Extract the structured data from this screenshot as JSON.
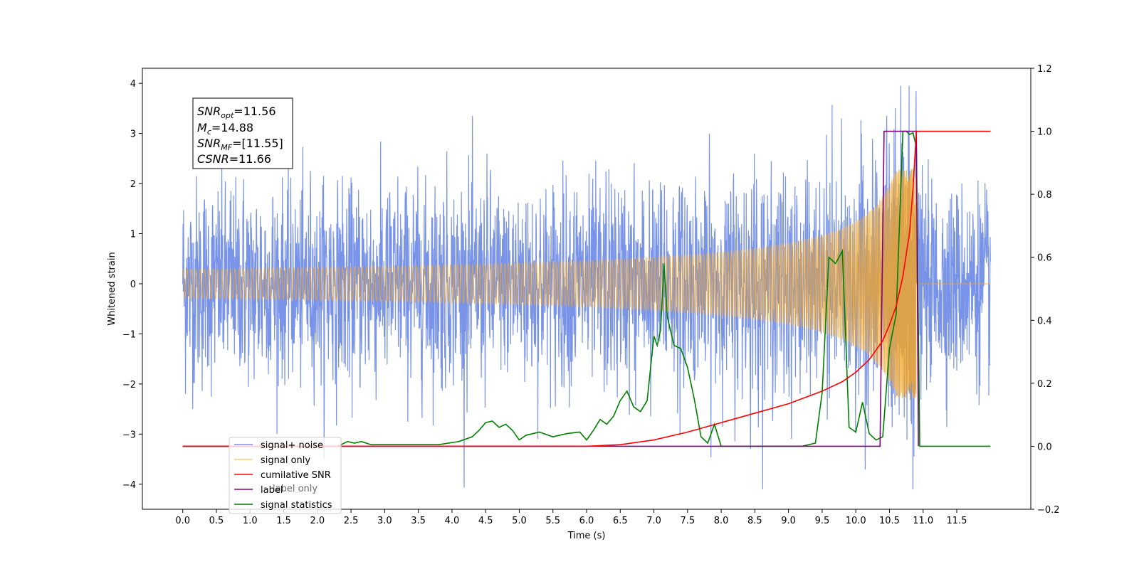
{
  "chart_data": {
    "type": "line",
    "title": "",
    "xlabel": "Time (s)",
    "ylabel": "Whitened strain",
    "y2label": "",
    "xlim": [
      -0.6,
      12.6
    ],
    "ylim": [
      -4.5,
      4.3
    ],
    "y2lim": [
      -0.2,
      1.2
    ],
    "xticks": [
      "0.0",
      "0.5",
      "1.0",
      "1.5",
      "2.0",
      "2.5",
      "3.0",
      "3.5",
      "4.0",
      "4.5",
      "5.0",
      "5.5",
      "6.0",
      "6.5",
      "7.0",
      "7.5",
      "8.0",
      "8.5",
      "9.0",
      "9.5",
      "10.0",
      "10.5",
      "11.0",
      "11.5"
    ],
    "yticks": [
      "4",
      "3",
      "2",
      "1",
      "0",
      "−1",
      "−2",
      "−3",
      "−4"
    ],
    "y2ticks": [
      "1.2",
      "1.0",
      "0.8",
      "0.6",
      "0.4",
      "0.2",
      "0.0",
      "−0.2"
    ],
    "grid": false,
    "legend_position": "lower-left",
    "annotation": {
      "snr_opt_symbol": "SNR",
      "snr_opt_sub": "opt",
      "snr_opt_value": "=11.56",
      "mc_symbol": "M",
      "mc_sub": "c",
      "mc_value": "=14.88",
      "snr_mf_symbol": "SNR",
      "snr_mf_sub": "MF",
      "snr_mf_value": "=[11.55]",
      "csnr_symbol": "CSNR",
      "csnr_value": "=11.66"
    },
    "series": [
      {
        "name": "signal+ noise",
        "color": "#7893e8",
        "axis": "left",
        "description_values": {
          "x_start": 0.0,
          "x_end": 12.0,
          "noise_std": 1.0,
          "peak_max": 3.95,
          "peak_min": -4.1
        }
      },
      {
        "name": "signal only",
        "color": "#f5a623",
        "axis": "left",
        "chirp": {
          "t_start": 0.0,
          "t_merge": 10.9,
          "t_end": 12.0,
          "amp_at_merge": 2.3
        }
      },
      {
        "name": "cumilative SNR",
        "color": "#ff0000",
        "axis": "right",
        "x": [
          0.0,
          6.0,
          6.5,
          7.0,
          7.5,
          8.0,
          8.5,
          9.0,
          9.5,
          9.8,
          10.0,
          10.2,
          10.4,
          10.5,
          10.6,
          10.7,
          10.8,
          10.85,
          10.9,
          12.0
        ],
        "y": [
          0.0,
          0.0,
          0.005,
          0.02,
          0.045,
          0.075,
          0.105,
          0.135,
          0.175,
          0.205,
          0.235,
          0.275,
          0.335,
          0.385,
          0.445,
          0.54,
          0.68,
          0.82,
          1.0,
          1.0
        ]
      },
      {
        "name": "label",
        "color": "#800080",
        "axis": "right",
        "x": [
          0.0,
          10.36,
          10.42,
          10.9,
          10.93
        ],
        "y": [
          0.0,
          0.0,
          1.0,
          1.0,
          0.0
        ]
      },
      {
        "name": "signal statistics",
        "color": "#008000",
        "axis": "right",
        "x": [
          0.0,
          2.3,
          2.45,
          2.55,
          2.65,
          2.8,
          3.2,
          3.8,
          4.1,
          4.3,
          4.4,
          4.5,
          4.6,
          4.7,
          4.8,
          4.9,
          5.0,
          5.1,
          5.3,
          5.5,
          5.7,
          5.9,
          6.0,
          6.1,
          6.2,
          6.3,
          6.4,
          6.5,
          6.6,
          6.7,
          6.8,
          6.9,
          7.0,
          7.05,
          7.1,
          7.15,
          7.2,
          7.3,
          7.4,
          7.5,
          7.6,
          7.7,
          7.8,
          7.9,
          8.0,
          9.2,
          9.4,
          9.5,
          9.6,
          9.7,
          9.8,
          9.9,
          10.0,
          10.1,
          10.2,
          10.3,
          10.4,
          10.5,
          10.6,
          10.7,
          10.75,
          10.8,
          10.85,
          10.9,
          10.95,
          11.0,
          12.0
        ],
        "y": [
          0.0,
          0.0,
          0.015,
          0.01,
          0.015,
          0.005,
          0.005,
          0.005,
          0.015,
          0.03,
          0.05,
          0.075,
          0.08,
          0.06,
          0.07,
          0.05,
          0.02,
          0.035,
          0.045,
          0.03,
          0.04,
          0.045,
          0.02,
          0.05,
          0.085,
          0.07,
          0.095,
          0.145,
          0.175,
          0.125,
          0.11,
          0.145,
          0.35,
          0.32,
          0.37,
          0.58,
          0.41,
          0.32,
          0.31,
          0.25,
          0.15,
          0.03,
          0.01,
          0.07,
          0.0,
          0.0,
          0.01,
          0.17,
          0.6,
          0.58,
          0.62,
          0.06,
          0.045,
          0.14,
          0.04,
          0.02,
          0.03,
          0.31,
          0.42,
          1.0,
          1.0,
          0.99,
          0.995,
          0.95,
          0.0,
          0.0,
          0.0
        ]
      }
    ],
    "legend_extra_ghost": "label only"
  }
}
